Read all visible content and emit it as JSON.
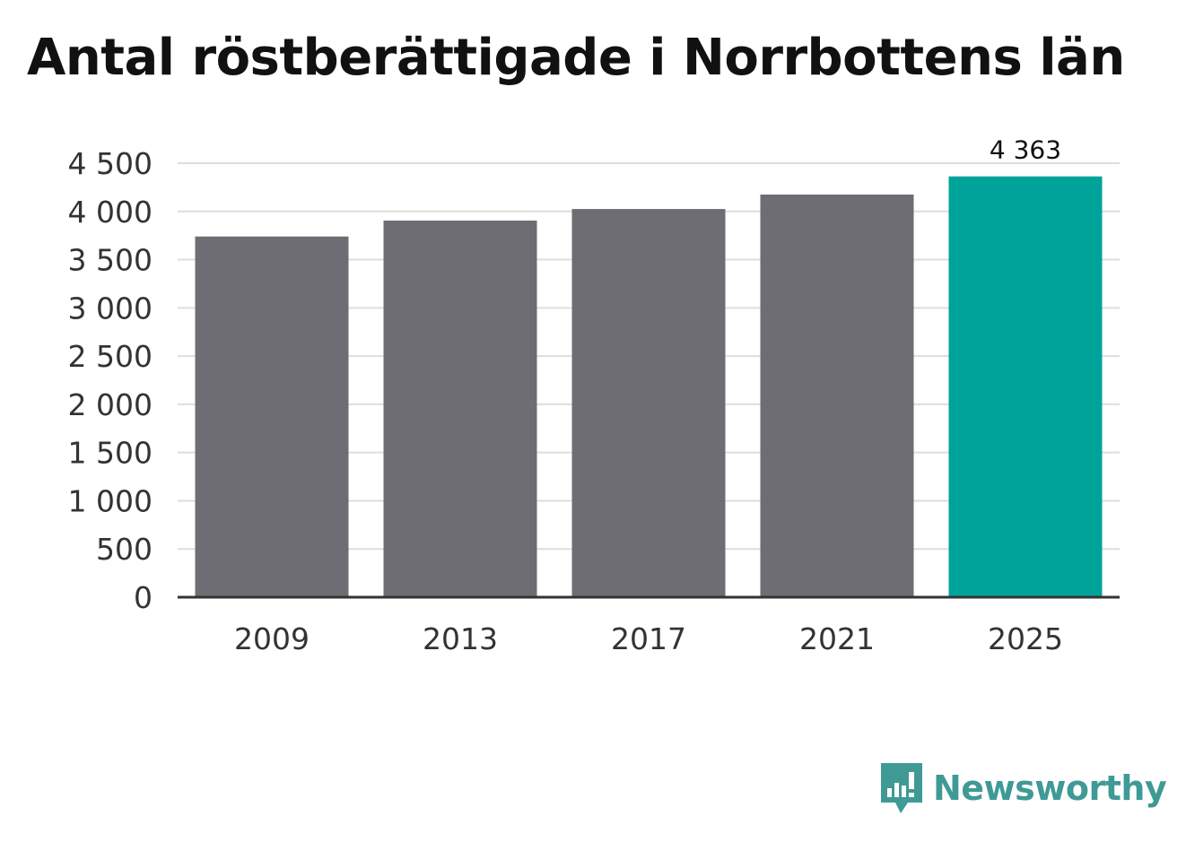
{
  "chart_data": {
    "type": "bar",
    "title": "Antal röstberättigade i Norrbottens län",
    "categories": [
      "2009",
      "2013",
      "2017",
      "2021",
      "2025"
    ],
    "values": [
      3740,
      3905,
      4025,
      4175,
      4363
    ],
    "data_labels": [
      "",
      "",
      "",
      "",
      "4 363"
    ],
    "yticks": [
      "0",
      "500",
      "1 000",
      "1 500",
      "2 000",
      "2 500",
      "3 000",
      "3 500",
      "4 000",
      "4 500"
    ],
    "ytick_values": [
      0,
      500,
      1000,
      1500,
      2000,
      2500,
      3000,
      3500,
      4000,
      4500
    ],
    "ylim": [
      0,
      4500
    ],
    "xlabel": "",
    "ylabel": "",
    "grid": true,
    "colors": {
      "bar": "#6e6d73",
      "highlight": "#00a39a",
      "grid": "#dddddd",
      "axis": "#333333",
      "text": "#333333"
    }
  },
  "brand": {
    "name": "Newsworthy",
    "icon": "newsworthy-logo-icon",
    "color": "#3f9a96"
  }
}
